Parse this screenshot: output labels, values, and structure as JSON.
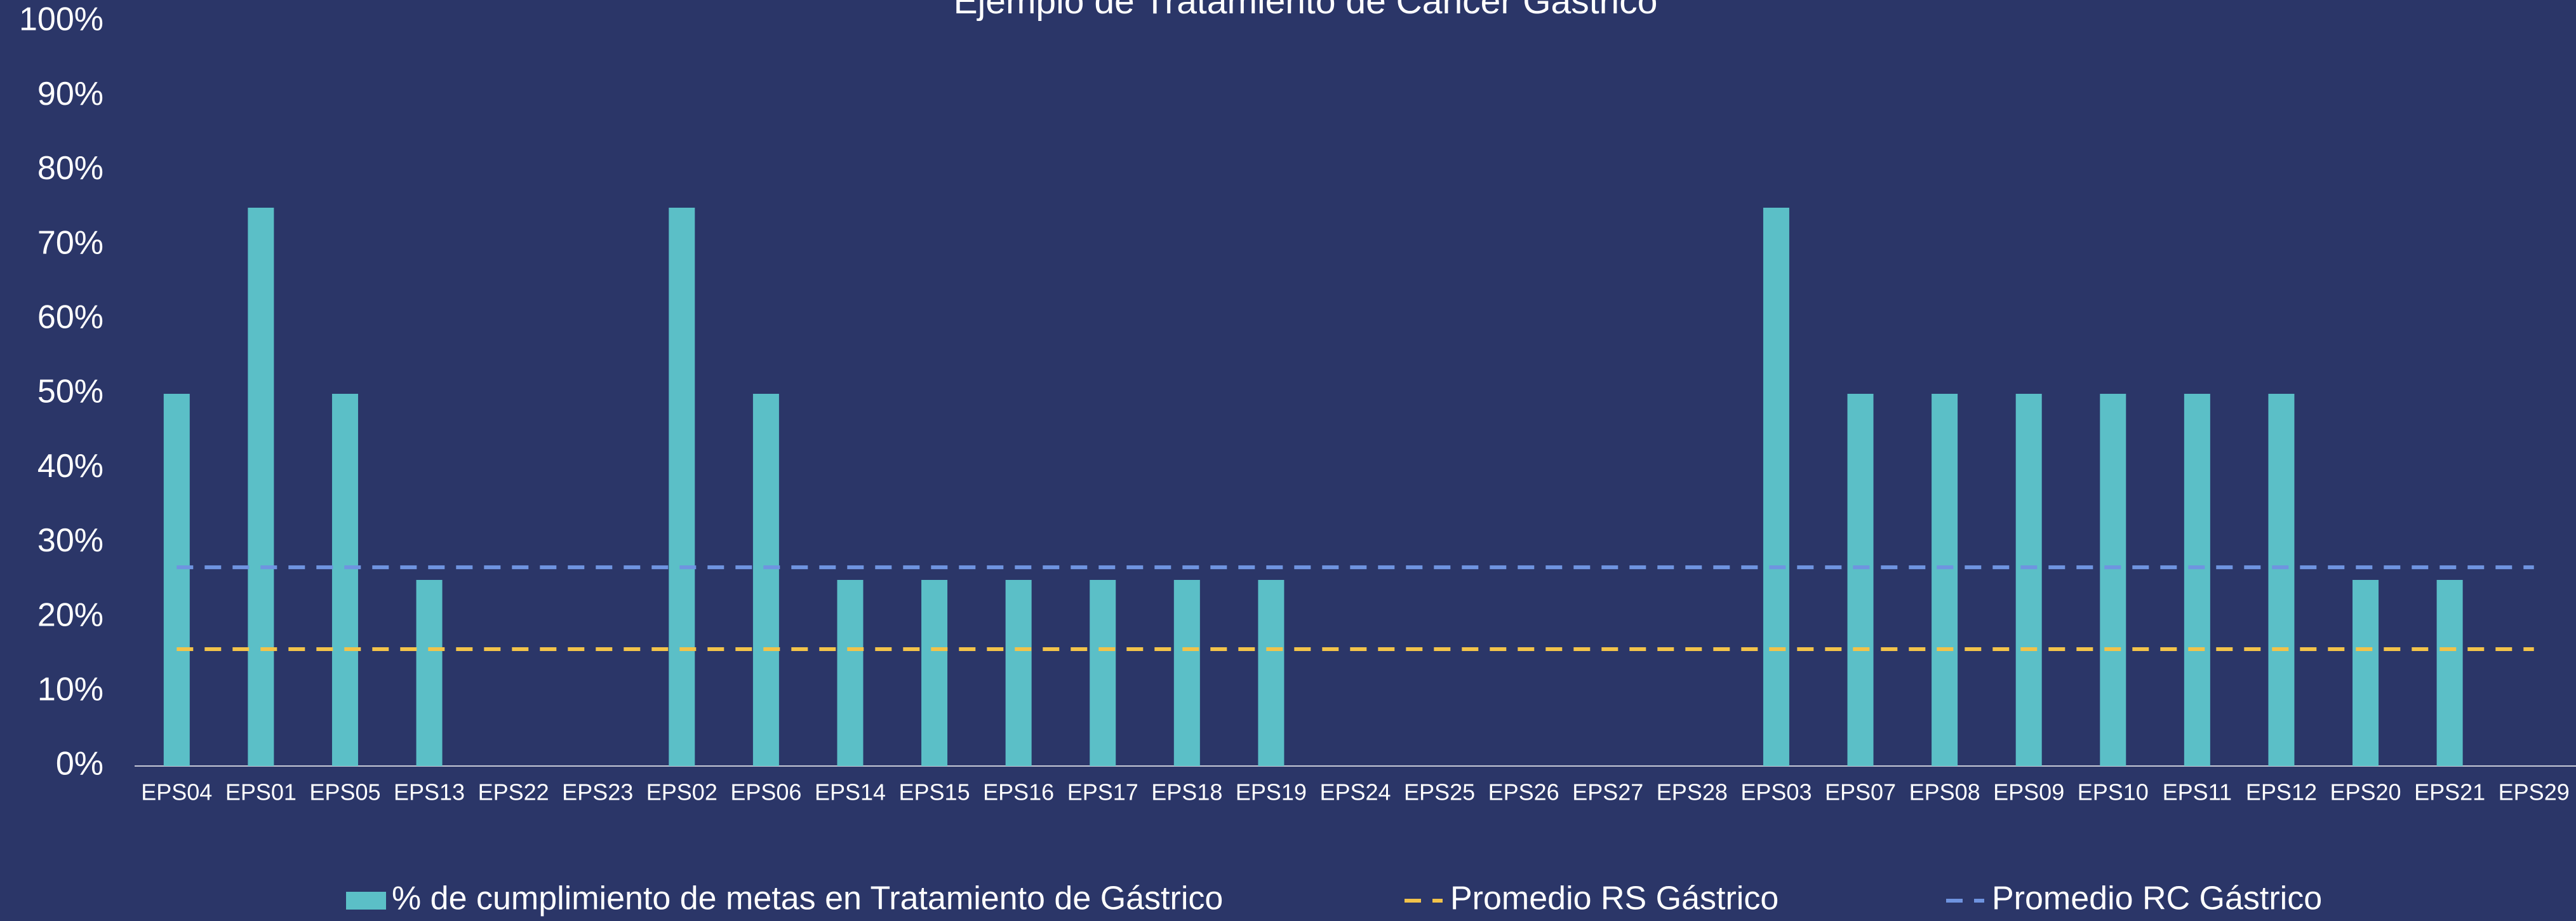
{
  "chart_data": {
    "type": "bar",
    "title": "Ejemplo de Tratamiento de Cáncer Gástrico",
    "categories": [
      "EPS04",
      "EPS01",
      "EPS05",
      "EPS13",
      "EPS22",
      "EPS23",
      "EPS02",
      "EPS06",
      "EPS14",
      "EPS15",
      "EPS16",
      "EPS17",
      "EPS18",
      "EPS19",
      "EPS24",
      "EPS25",
      "EPS26",
      "EPS27",
      "EPS28",
      "EPS03",
      "EPS07",
      "EPS08",
      "EPS09",
      "EPS10",
      "EPS11",
      "EPS12",
      "EPS20",
      "EPS21",
      "EPS29"
    ],
    "series": [
      {
        "name": "% de cumplimiento de metas en Tratamiento de Gástrico",
        "type": "bar",
        "color": "#5bbfc7",
        "values": [
          50,
          75,
          50,
          25,
          0,
          0,
          75,
          50,
          25,
          25,
          25,
          25,
          25,
          25,
          0,
          0,
          0,
          0,
          0,
          75,
          50,
          50,
          50,
          50,
          50,
          50,
          25,
          25,
          0
        ]
      },
      {
        "name": "Promedio RS Gástrico",
        "type": "line",
        "color": "#f2c34a",
        "values": [
          15.7,
          15.7,
          15.7,
          15.7,
          15.7,
          15.7,
          15.7,
          15.7,
          15.7,
          15.7,
          15.7,
          15.7,
          15.7,
          15.7,
          15.7,
          15.7,
          15.7,
          15.7,
          15.7,
          15.7,
          15.7,
          15.7,
          15.7,
          15.7,
          15.7,
          15.7,
          15.7,
          15.7,
          15.7
        ]
      },
      {
        "name": "Promedio RC Gástrico",
        "type": "line",
        "color": "#6f94e0",
        "values": [
          26.7,
          26.7,
          26.7,
          26.7,
          26.7,
          26.7,
          26.7,
          26.7,
          26.7,
          26.7,
          26.7,
          26.7,
          26.7,
          26.7,
          26.7,
          26.7,
          26.7,
          26.7,
          26.7,
          26.7,
          26.7,
          26.7,
          26.7,
          26.7,
          26.7,
          26.7,
          26.7,
          26.7,
          26.7
        ]
      }
    ],
    "ylim": [
      0,
      100
    ],
    "yticks": [
      {
        "value": 0,
        "label": "0%"
      },
      {
        "value": 10,
        "label": "10%"
      },
      {
        "value": 20,
        "label": "20%"
      },
      {
        "value": 30,
        "label": "30%"
      },
      {
        "value": 40,
        "label": "40%"
      },
      {
        "value": 50,
        "label": "50%"
      },
      {
        "value": 60,
        "label": "60%"
      },
      {
        "value": 70,
        "label": "70%"
      },
      {
        "value": 80,
        "label": "80%"
      },
      {
        "value": 90,
        "label": "90%"
      },
      {
        "value": 100,
        "label": "100%"
      }
    ],
    "grid": false,
    "legend": "bottom"
  }
}
